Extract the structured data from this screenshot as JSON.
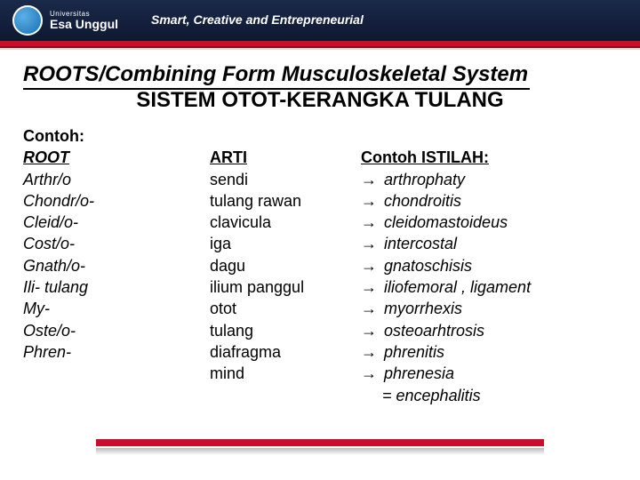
{
  "brand": {
    "small": "Universitas",
    "big": "Esa Unggul",
    "tagline": "Smart, Creative and Entrepreneurial"
  },
  "title": {
    "line1": "ROOTS/Combining Form  Musculoskeletal System",
    "line2": "SISTEM OTOT-KERANGKA TULANG"
  },
  "headers": {
    "contoh": "Contoh:",
    "root": "ROOT",
    "arti": "ARTI",
    "istilah": "Contoh ISTILAH:"
  },
  "rows": [
    {
      "root": "Arthr/o",
      "arti": "sendi",
      "ex": "arthrophaty"
    },
    {
      "root": "Chondr/o-",
      "arti": "tulang rawan",
      "ex": "chondroitis"
    },
    {
      "root": "Cleid/o-",
      "arti": "clavicula",
      "ex": "cleidomastoideus"
    },
    {
      "root": "Cost/o-",
      "arti": "iga",
      "ex": "intercostal"
    },
    {
      "root": "Gnath/o-",
      "arti": "dagu",
      "ex": "gnatoschisis"
    },
    {
      "root": "Ili-   tulang",
      "arti": "ilium panggul",
      "ex": "iliofemoral , ligament"
    },
    {
      "root": "My-",
      "arti": "otot",
      "ex": "myorrhexis"
    },
    {
      "root": "Oste/o-",
      "arti": "tulang",
      "ex": "osteoarhtrosis"
    },
    {
      "root": "Phren-",
      "arti": "diafragma",
      "ex": "phrenitis"
    }
  ],
  "extra": {
    "arti": "mind",
    "ex": "phrenesia",
    "eq": "= encephalitis"
  },
  "colors": {
    "navy": "#0e1830",
    "red": "#c8102e"
  }
}
